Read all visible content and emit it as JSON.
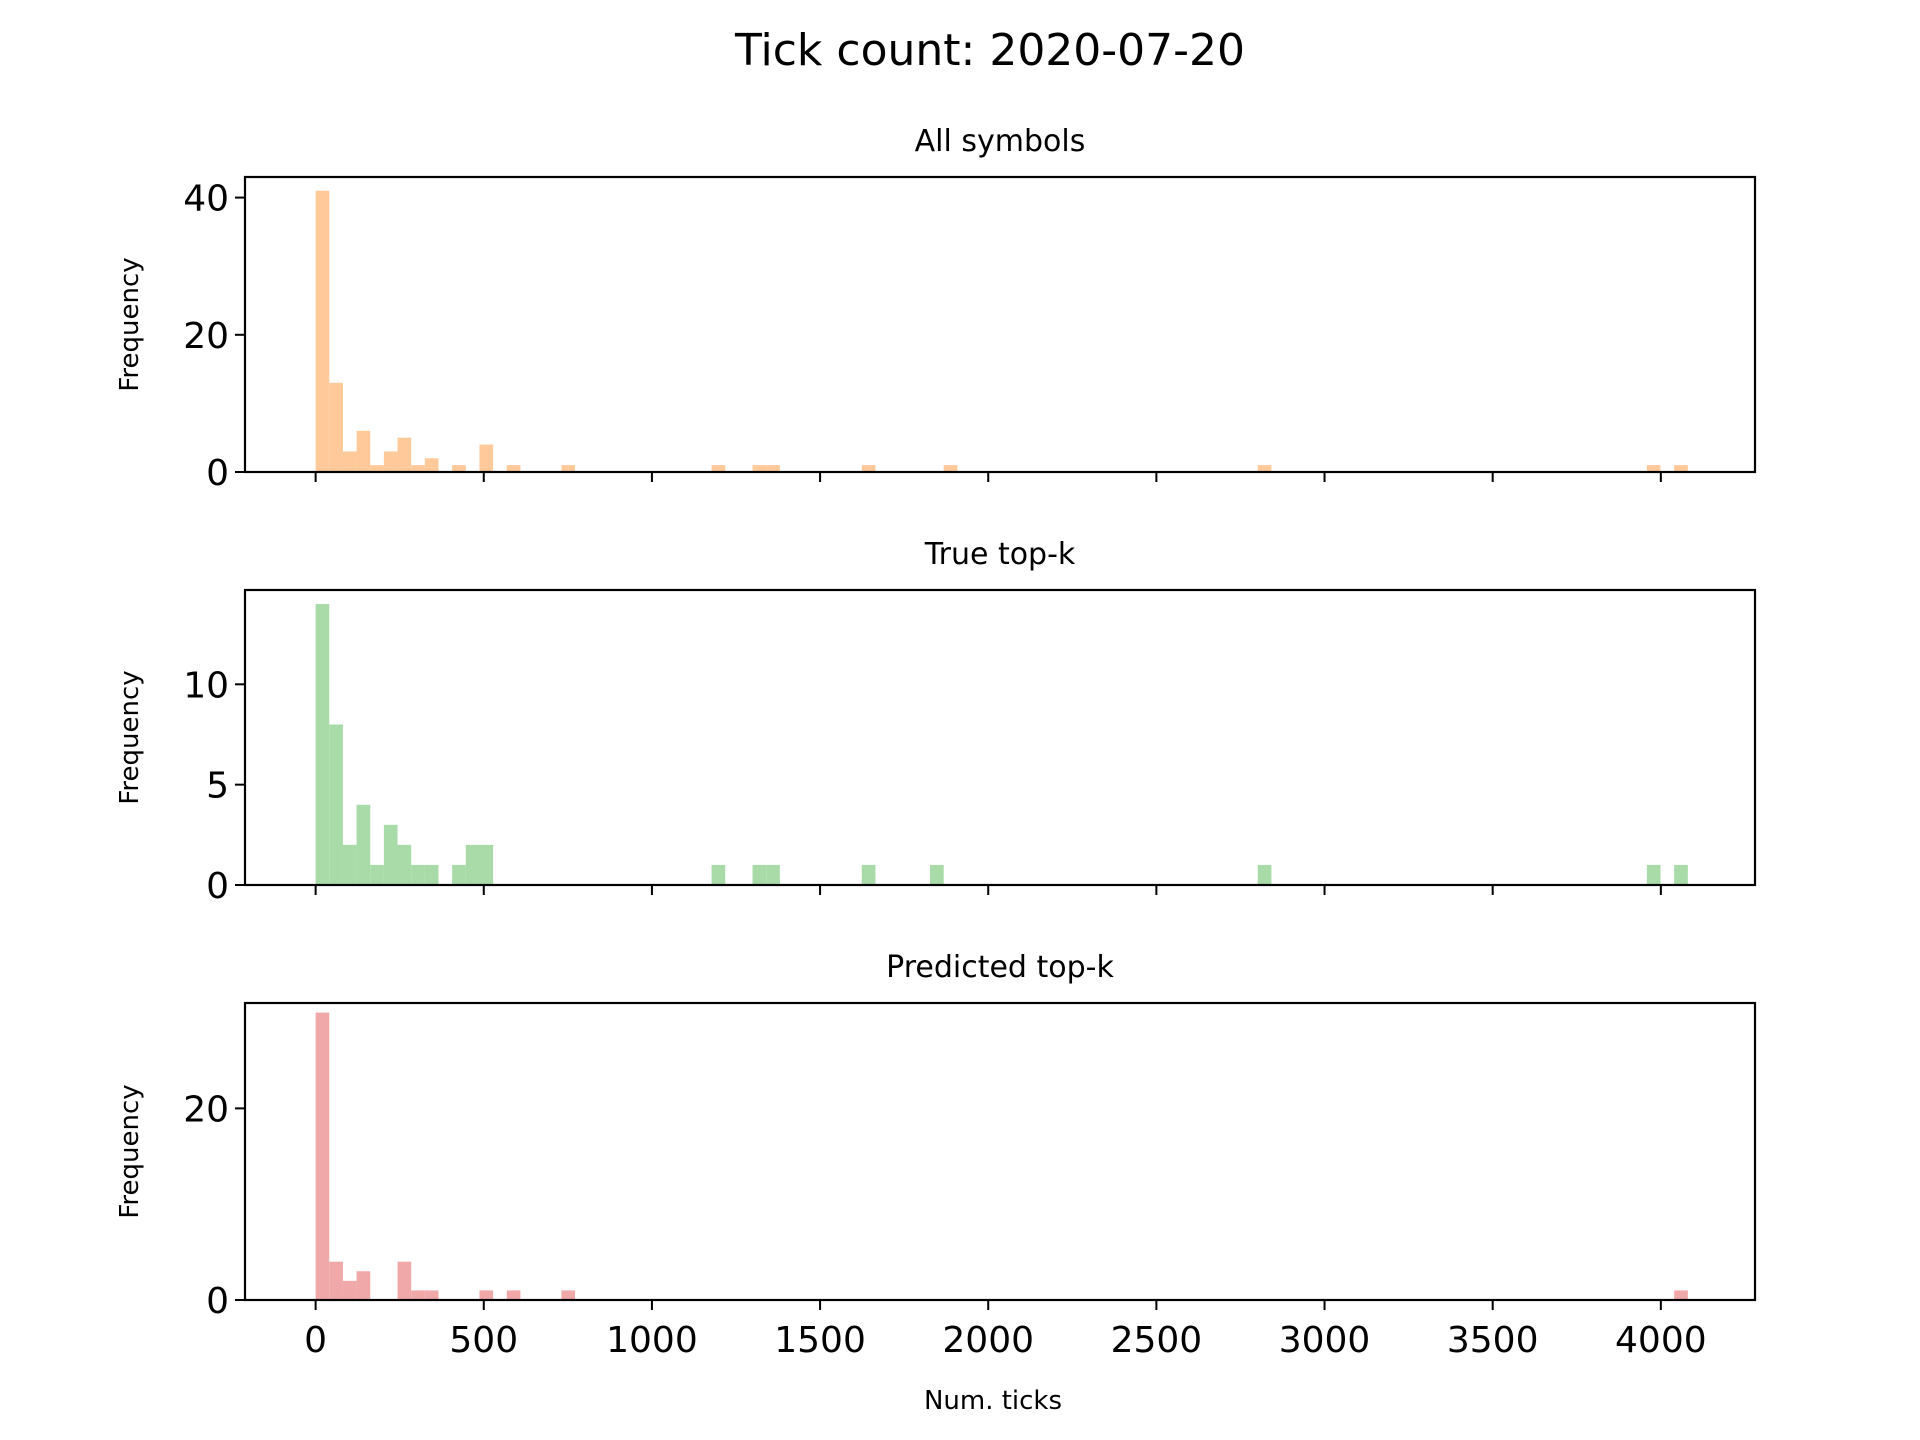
{
  "figure": {
    "title": "Tick count: 2020-07-20",
    "xlabel": "Num. ticks"
  },
  "chart_data": [
    {
      "type": "histogram",
      "title": "All symbols",
      "ylabel": "Frequency",
      "color": "#ffc999",
      "xlim": [
        -210,
        4280
      ],
      "ylim": [
        0,
        43
      ],
      "xticks": [
        0,
        500,
        1000,
        1500,
        2000,
        2500,
        3000,
        3500,
        4000
      ],
      "show_xtick_labels": false,
      "yticks": [
        0,
        20,
        40
      ],
      "bin_width": 40.6,
      "bins": [
        {
          "x0": 0,
          "count": 41
        },
        {
          "x0": 40.6,
          "count": 13
        },
        {
          "x0": 81.2,
          "count": 3
        },
        {
          "x0": 121.8,
          "count": 6
        },
        {
          "x0": 162.4,
          "count": 1
        },
        {
          "x0": 203,
          "count": 3
        },
        {
          "x0": 243.6,
          "count": 5
        },
        {
          "x0": 284.2,
          "count": 1
        },
        {
          "x0": 324.8,
          "count": 2
        },
        {
          "x0": 406,
          "count": 1
        },
        {
          "x0": 487.2,
          "count": 4
        },
        {
          "x0": 568.4,
          "count": 1
        },
        {
          "x0": 730.8,
          "count": 1
        },
        {
          "x0": 1177.4,
          "count": 1
        },
        {
          "x0": 1299.2,
          "count": 1
        },
        {
          "x0": 1339.8,
          "count": 1
        },
        {
          "x0": 1624,
          "count": 1
        },
        {
          "x0": 1867.6,
          "count": 1
        },
        {
          "x0": 2801.4,
          "count": 1
        },
        {
          "x0": 3958.5,
          "count": 1
        },
        {
          "x0": 4039.7,
          "count": 1
        }
      ]
    },
    {
      "type": "histogram",
      "title": "True top-k",
      "ylabel": "Frequency",
      "color": "#a8dba8",
      "xlim": [
        -210,
        4280
      ],
      "ylim": [
        0,
        14.7
      ],
      "xticks": [
        0,
        500,
        1000,
        1500,
        2000,
        2500,
        3000,
        3500,
        4000
      ],
      "show_xtick_labels": false,
      "yticks": [
        0,
        5,
        10
      ],
      "bin_width": 40.6,
      "bins": [
        {
          "x0": 0,
          "count": 14
        },
        {
          "x0": 40.6,
          "count": 8
        },
        {
          "x0": 81.2,
          "count": 2
        },
        {
          "x0": 121.8,
          "count": 4
        },
        {
          "x0": 162.4,
          "count": 1
        },
        {
          "x0": 203,
          "count": 3
        },
        {
          "x0": 243.6,
          "count": 2
        },
        {
          "x0": 284.2,
          "count": 1
        },
        {
          "x0": 324.8,
          "count": 1
        },
        {
          "x0": 406,
          "count": 1
        },
        {
          "x0": 446.6,
          "count": 2
        },
        {
          "x0": 487.2,
          "count": 2
        },
        {
          "x0": 1177.4,
          "count": 1
        },
        {
          "x0": 1299.2,
          "count": 1
        },
        {
          "x0": 1339.8,
          "count": 1
        },
        {
          "x0": 1624,
          "count": 1
        },
        {
          "x0": 1827,
          "count": 1
        },
        {
          "x0": 2801.4,
          "count": 1
        },
        {
          "x0": 3958.5,
          "count": 1
        },
        {
          "x0": 4039.7,
          "count": 1
        }
      ]
    },
    {
      "type": "histogram",
      "title": "Predicted top-k",
      "ylabel": "Frequency",
      "color": "#f0a8a8",
      "xlim": [
        -210,
        4280
      ],
      "ylim": [
        0,
        31
      ],
      "xticks": [
        0,
        500,
        1000,
        1500,
        2000,
        2500,
        3000,
        3500,
        4000
      ],
      "show_xtick_labels": true,
      "yticks": [
        0,
        20
      ],
      "bin_width": 40.6,
      "bins": [
        {
          "x0": 0,
          "count": 30
        },
        {
          "x0": 40.6,
          "count": 4
        },
        {
          "x0": 81.2,
          "count": 2
        },
        {
          "x0": 121.8,
          "count": 3
        },
        {
          "x0": 243.6,
          "count": 4
        },
        {
          "x0": 284.2,
          "count": 1
        },
        {
          "x0": 324.8,
          "count": 1
        },
        {
          "x0": 487.2,
          "count": 1
        },
        {
          "x0": 568.4,
          "count": 1
        },
        {
          "x0": 730.8,
          "count": 1
        },
        {
          "x0": 4039.7,
          "count": 1
        }
      ]
    }
  ]
}
